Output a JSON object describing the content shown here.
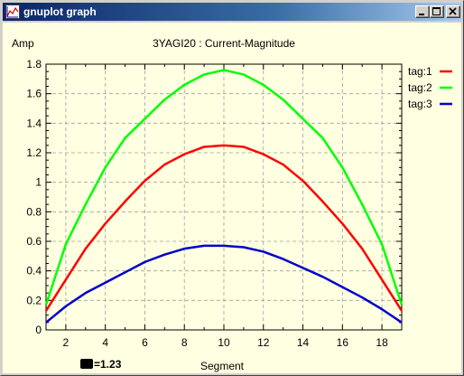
{
  "window": {
    "title": "gnuplot graph"
  },
  "chart_data": {
    "type": "line",
    "title": "3YAGI20 : Current-Magnitude",
    "xlabel": "Segment",
    "ylabel": "Amp",
    "xlim": [
      1,
      19
    ],
    "ylim": [
      0,
      1.8
    ],
    "grid": true,
    "legend_position": "right",
    "x_ticks": [
      2,
      4,
      6,
      8,
      10,
      12,
      14,
      16,
      18
    ],
    "y_ticks": [
      0,
      0.2,
      0.4,
      0.6,
      0.8,
      1,
      1.2,
      1.4,
      1.6,
      1.8
    ],
    "x": [
      1,
      2,
      3,
      4,
      5,
      6,
      7,
      8,
      9,
      10,
      11,
      12,
      13,
      14,
      15,
      16,
      17,
      18,
      19
    ],
    "series": [
      {
        "name": "tag:1",
        "color": "#ff0000",
        "values": [
          0.13,
          0.34,
          0.55,
          0.72,
          0.87,
          1.01,
          1.12,
          1.19,
          1.24,
          1.25,
          1.24,
          1.19,
          1.12,
          1.01,
          0.87,
          0.72,
          0.55,
          0.34,
          0.13
        ]
      },
      {
        "name": "tag:2",
        "color": "#00ff00",
        "values": [
          0.17,
          0.58,
          0.85,
          1.1,
          1.3,
          1.43,
          1.56,
          1.66,
          1.73,
          1.76,
          1.73,
          1.66,
          1.56,
          1.43,
          1.3,
          1.1,
          0.85,
          0.58,
          0.17
        ]
      },
      {
        "name": "tag:3",
        "color": "#0000cc",
        "values": [
          0.05,
          0.16,
          0.25,
          0.32,
          0.39,
          0.46,
          0.51,
          0.55,
          0.57,
          0.57,
          0.56,
          0.53,
          0.48,
          0.42,
          0.36,
          0.29,
          0.22,
          0.14,
          0.05
        ]
      }
    ]
  },
  "status": {
    "text": "=1.23"
  },
  "colors": {
    "plot_background": "#ffffe1",
    "grid": "#a0a0a0",
    "titlebar_start": "#0a246a",
    "titlebar_end": "#a6caf0"
  },
  "icons": {
    "app": "gnuplot-graph-icon",
    "minimize": "minimize-icon",
    "maximize": "maximize-icon",
    "close": "close-icon"
  }
}
